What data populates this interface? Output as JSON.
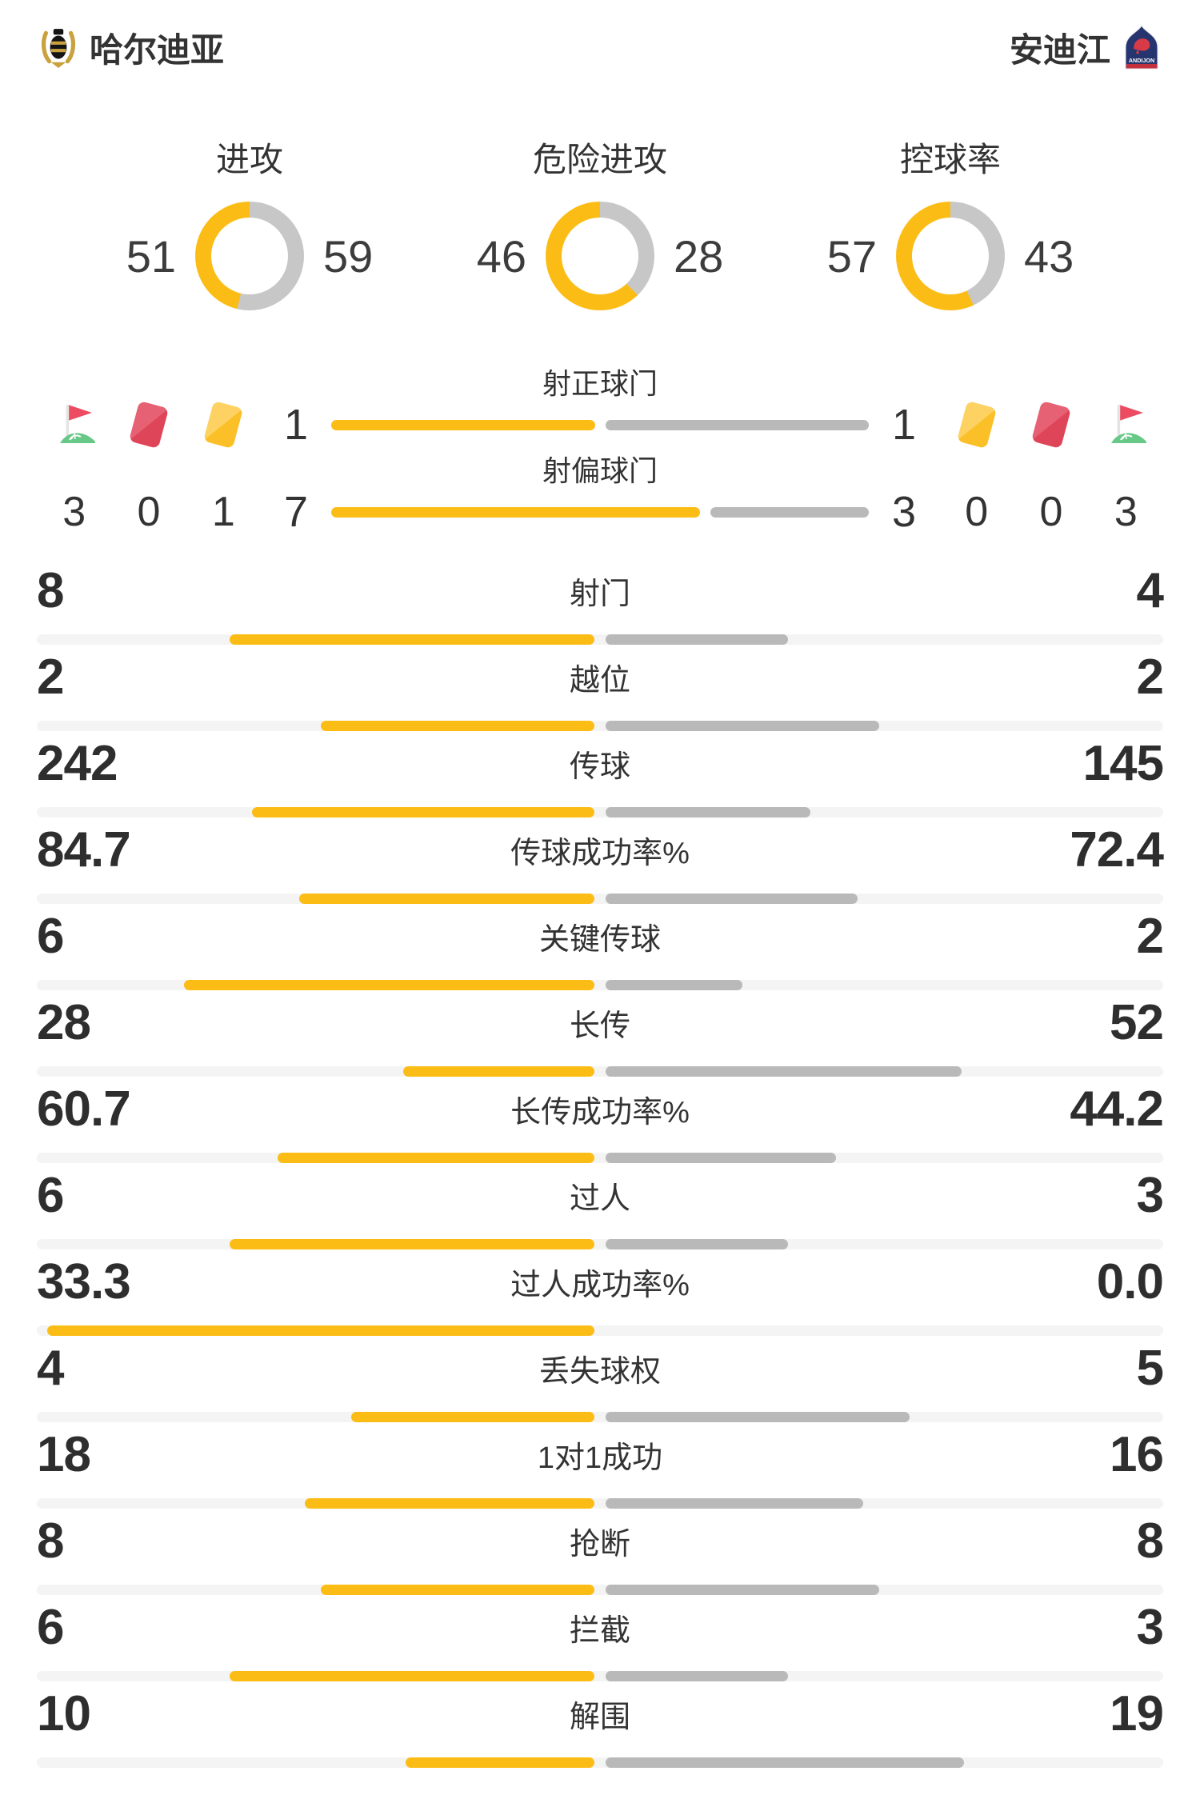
{
  "header": {
    "home": {
      "name": "哈尔迪亚"
    },
    "away": {
      "name": "安迪江",
      "logo_text": "ANDIJON"
    }
  },
  "donuts": [
    {
      "title": "进攻",
      "home": 51,
      "away": 59
    },
    {
      "title": "危险进攻",
      "home": 46,
      "away": 28
    },
    {
      "title": "控球率",
      "home": 57,
      "away": 43
    }
  ],
  "shots": [
    {
      "label": "射正球门",
      "home": "1",
      "away": "1"
    },
    {
      "label": "射偏球门",
      "home": "7",
      "away": "3"
    }
  ],
  "cards": {
    "home": [
      {
        "icon": "corner-flag",
        "count": "3"
      },
      {
        "icon": "red-card",
        "count": "0"
      },
      {
        "icon": "yellow-card",
        "count": "1"
      }
    ],
    "away": [
      {
        "icon": "yellow-card",
        "count": "0"
      },
      {
        "icon": "red-card",
        "count": "0"
      },
      {
        "icon": "corner-flag",
        "count": "3"
      }
    ]
  },
  "stats": [
    {
      "label": "射门",
      "home": "8",
      "away": "4"
    },
    {
      "label": "越位",
      "home": "2",
      "away": "2"
    },
    {
      "label": "传球",
      "home": "242",
      "away": "145"
    },
    {
      "label": "传球成功率%",
      "home": "84.7",
      "away": "72.4"
    },
    {
      "label": "关键传球",
      "home": "6",
      "away": "2"
    },
    {
      "label": "长传",
      "home": "28",
      "away": "52"
    },
    {
      "label": "长传成功率%",
      "home": "60.7",
      "away": "44.2"
    },
    {
      "label": "过人",
      "home": "6",
      "away": "3"
    },
    {
      "label": "过人成功率%",
      "home": "33.3",
      "away": "0.0"
    },
    {
      "label": "丢失球权",
      "home": "4",
      "away": "5"
    },
    {
      "label": "1对1成功",
      "home": "18",
      "away": "16"
    },
    {
      "label": "抢断",
      "home": "8",
      "away": "8"
    },
    {
      "label": "拦截",
      "home": "6",
      "away": "3"
    },
    {
      "label": "解围",
      "home": "10",
      "away": "19"
    }
  ],
  "colors": {
    "accent_yellow": "#FBBD15",
    "bar_gray": "#B9B9B9",
    "donut_gray": "#C7C7C7",
    "track_gray": "#F4F4F4",
    "text": "#333333",
    "red_card": "#DE4558",
    "yellow_card": "#FBBF27",
    "flag_red": "#EC4B61",
    "flag_green": "#68C887",
    "crest_gold": "#C9A23F",
    "crest_black": "#141414",
    "andijon_navy": "#27356F",
    "andijon_red": "#C4313E"
  }
}
